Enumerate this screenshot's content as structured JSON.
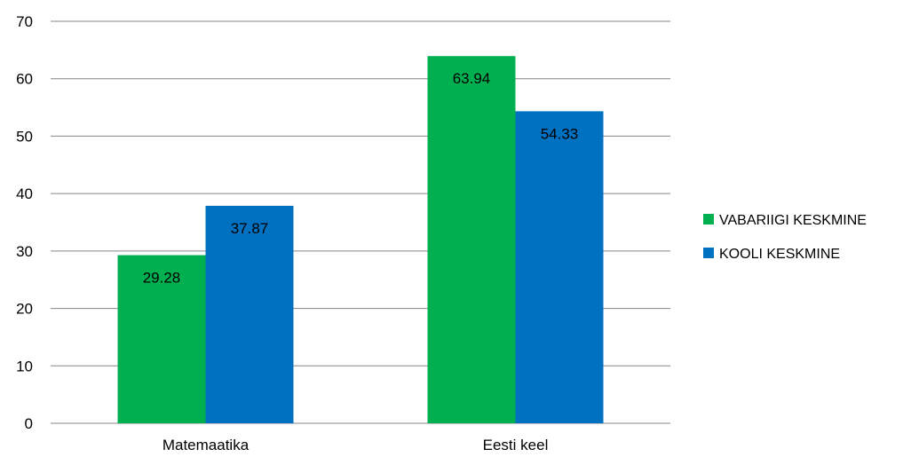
{
  "chart_data": {
    "type": "bar",
    "categories": [
      "Matemaatika",
      "Eesti keel"
    ],
    "series": [
      {
        "name": "VABARIIGI KESKMINE",
        "values": [
          29.28,
          63.94
        ],
        "color": "#00b050"
      },
      {
        "name": "KOOLI KESKMINE",
        "values": [
          37.87,
          54.33
        ],
        "color": "#0070c0"
      }
    ],
    "data_labels": [
      [
        "29.28",
        "63.94"
      ],
      [
        "37.87",
        "54.33"
      ]
    ],
    "y_ticks": [
      "0",
      "10",
      "20",
      "30",
      "40",
      "50",
      "60",
      "70"
    ],
    "ylim": [
      0,
      70
    ],
    "grid": true,
    "legend_position": "right"
  }
}
